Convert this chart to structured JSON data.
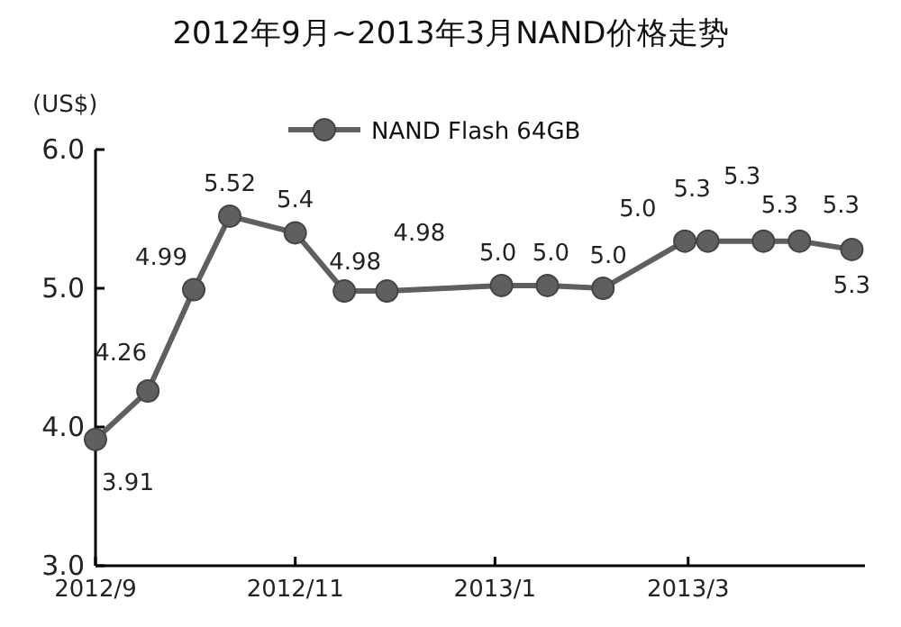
{
  "chart_data": {
    "type": "line",
    "title": "2012年9月~2013年3月NAND价格走势",
    "ylabel": "(US$)",
    "x": [
      "2012-09-01",
      "2012-09-17",
      "2012-10-01",
      "2012-10-12",
      "2012-11-01",
      "2012-11-16",
      "2012-11-29",
      "2013-01-03",
      "2013-01-17",
      "2013-02-03",
      "2013-02-28",
      "2013-03-07",
      "2013-03-24",
      "2013-04-04",
      "2013-04-20"
    ],
    "series": [
      {
        "name": "NAND Flash 64GB",
        "color": "#5f5f5f",
        "values": [
          3.91,
          4.26,
          4.99,
          5.52,
          5.4,
          4.98,
          4.98,
          5.02,
          5.02,
          5.0,
          5.34,
          5.34,
          5.34,
          5.34,
          5.28
        ],
        "value_labels": [
          "3.91",
          "4.26",
          "4.99",
          "5.52",
          "5.4",
          "4.98",
          "4.98",
          "5.0",
          "5.0",
          "5.0",
          "5.3",
          "5.3",
          "5.3",
          "5.3",
          "5.3"
        ]
      }
    ],
    "annotations": [
      "5.0"
    ],
    "xlim": [
      "2012-09-01",
      "2013-04-24"
    ],
    "xticks": [
      {
        "value": "2012-09-01",
        "label": "2012/9"
      },
      {
        "value": "2012-11-01",
        "label": "2012/11"
      },
      {
        "value": "2013-01-01",
        "label": "2013/1"
      },
      {
        "value": "2013-03-01",
        "label": "2013/3"
      }
    ],
    "ylim": [
      3.0,
      6.0
    ],
    "yticks": [
      {
        "value": 3.0,
        "label": "3.0"
      },
      {
        "value": 4.0,
        "label": "4.0"
      },
      {
        "value": 5.0,
        "label": "5.0"
      },
      {
        "value": 6.0,
        "label": "6.0"
      }
    ],
    "legend": "top",
    "marker": "circle",
    "line_style": "solid",
    "grid": false
  }
}
